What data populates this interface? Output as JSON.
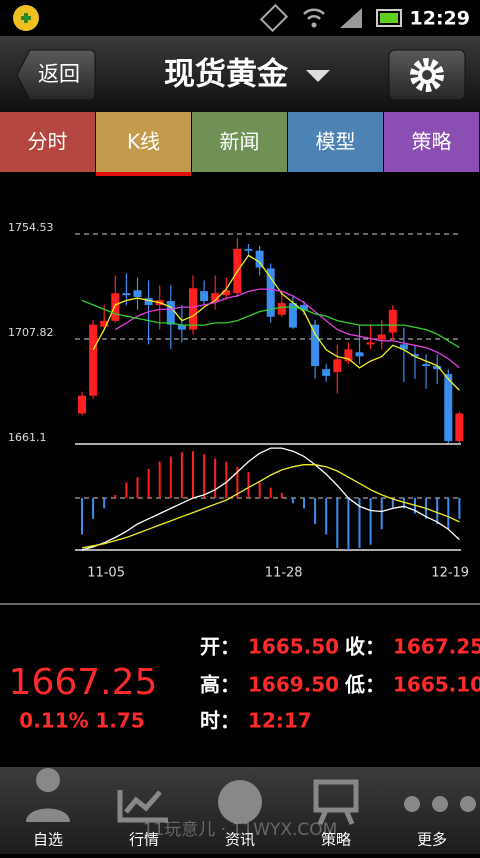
{
  "status_bar": {
    "time": "12:29"
  },
  "header": {
    "back": "返回",
    "title": "现货黄金"
  },
  "tabs": [
    "分时",
    "K线",
    "新闻",
    "模型",
    "策略"
  ],
  "active_tab": 1,
  "chart_data": [
    {
      "type": "candlestick",
      "categories": [
        null,
        "11-05",
        null,
        null,
        null,
        null,
        null,
        null,
        null,
        null,
        null,
        null,
        null,
        null,
        null,
        null,
        null,
        "11-28",
        null,
        null,
        null,
        null,
        null,
        null,
        null,
        null,
        null,
        null,
        null,
        null,
        null,
        null,
        "12-19",
        null,
        null
      ],
      "open": [
        1674.7,
        1682.6,
        1713.3,
        1715.9,
        1728.2,
        1729.5,
        1726.0,
        1722.9,
        1724.7,
        1714.2,
        1712.0,
        1729.1,
        1724.7,
        1727.3,
        1728.2,
        1747.9,
        1747.1,
        1739.2,
        1718.6,
        1723.8,
        1722.9,
        1714.2,
        1694.4,
        1693.1,
        1697.9,
        1701.9,
        1705.4,
        1707.6,
        1710.7,
        1705.4,
        1701.0,
        1696.6,
        1695.8,
        1692.2,
        1662.4
      ],
      "high": [
        1684.4,
        1716.4,
        1722.9,
        1736.1,
        1737.0,
        1735.2,
        1733.9,
        1731.7,
        1731.7,
        1722.9,
        1736.1,
        1733.9,
        1736.1,
        1735.2,
        1752.8,
        1750.1,
        1749.3,
        1741.4,
        1729.5,
        1727.3,
        1724.7,
        1716.4,
        1696.6,
        1705.4,
        1706.3,
        1714.2,
        1714.2,
        1716.4,
        1722.9,
        1712.9,
        1705.4,
        1701.0,
        1701.0,
        1694.4,
        1675.6
      ],
      "low": [
        1673.8,
        1681.3,
        1712.4,
        1715.1,
        1722.9,
        1720.8,
        1705.4,
        1712.0,
        1703.2,
        1706.3,
        1709.8,
        1722.9,
        1720.8,
        1725.1,
        1726.5,
        1744.9,
        1736.1,
        1715.1,
        1717.7,
        1712.4,
        1718.6,
        1690.1,
        1688.7,
        1683.5,
        1696.6,
        1696.6,
        1703.2,
        1703.2,
        1707.6,
        1688.7,
        1690.1,
        1685.7,
        1687.9,
        1661.5,
        1661.5
      ],
      "close": [
        1682.6,
        1714.2,
        1715.9,
        1728.2,
        1727.3,
        1726.5,
        1722.9,
        1725.1,
        1714.2,
        1712.0,
        1730.4,
        1724.7,
        1728.2,
        1729.5,
        1747.9,
        1747.1,
        1739.6,
        1717.7,
        1723.8,
        1712.9,
        1720.8,
        1695.8,
        1691.4,
        1698.8,
        1703.2,
        1700.1,
        1706.3,
        1709.8,
        1720.8,
        1703.2,
        1700.1,
        1695.8,
        1694.4,
        1662.4,
        1674.7
      ],
      "up_color": "#ff2020",
      "down_color": "#3a8ef0",
      "lines": [
        {
          "color": "#f0f020",
          "values": [
            null,
            1703,
            1712,
            1723,
            1725,
            1726,
            1725,
            1724,
            1722,
            1716,
            1718,
            1722,
            1725,
            1730,
            1738,
            1745,
            1742,
            1735,
            1728,
            1724,
            1720,
            1710,
            1703,
            1700,
            1699,
            1695,
            1698,
            1700,
            1705,
            1703,
            1700,
            1698,
            1696,
            1690,
            1685
          ]
        },
        {
          "color": "#e040e0",
          "values": [
            null,
            null,
            null,
            1712,
            1715,
            1718,
            1720,
            1721,
            1721,
            1722,
            1722,
            1723,
            1724,
            1726,
            1727,
            1729,
            1730,
            1730,
            1729,
            1727,
            1724,
            1720,
            1716,
            1712,
            1710,
            1709,
            1708,
            1707,
            1707,
            1706,
            1705,
            1704,
            1702,
            1699,
            1695
          ]
        },
        {
          "color": "#30d030",
          "values": [
            1725,
            1723,
            1721,
            1719,
            1718,
            1717,
            1716,
            1715,
            1715,
            1714,
            1714,
            1714,
            1715,
            1715,
            1716,
            1718,
            1720,
            1721,
            1722,
            1722,
            1721,
            1719,
            1718,
            1716,
            1715,
            1714,
            1714,
            1714,
            1714,
            1714,
            1713,
            1712,
            1710,
            1707,
            1704
          ]
        }
      ],
      "ylim": [
        1661.1,
        1754.53
      ],
      "yticks": [
        1661.1,
        1707.82,
        1754.53
      ]
    },
    {
      "type": "bar",
      "values": [
        -3.5,
        -2,
        -1,
        0.3,
        1.5,
        2,
        2.8,
        3.5,
        4,
        4.4,
        4.5,
        4.2,
        3.8,
        3.5,
        3,
        2.5,
        1.5,
        1,
        0.5,
        -0.5,
        -1,
        -2.5,
        -3.5,
        -4.8,
        -5,
        -4.8,
        -4.5,
        -3,
        -1,
        -1,
        -1.5,
        -2,
        -2.5,
        -3,
        -2
      ],
      "up_color": "#ff2020",
      "down_color": "#3a8ef0",
      "lines": [
        {
          "color": "#ffffff",
          "values": [
            -5,
            -4.7,
            -4.3,
            -3.8,
            -3.2,
            -2.5,
            -2,
            -1.5,
            -1,
            -0.5,
            0,
            0.3,
            0.8,
            1.5,
            2.5,
            3.5,
            4.3,
            4.8,
            4.8,
            4.5,
            4,
            3.2,
            2.3,
            1.2,
            0,
            -0.8,
            -1.2,
            -1.3,
            -1,
            -0.8,
            -1.2,
            -1.8,
            -2.3,
            -3,
            -4
          ]
        },
        {
          "color": "#f0f020",
          "values": [
            -4.8,
            -4.6,
            -4.4,
            -4.1,
            -3.8,
            -3.4,
            -3,
            -2.6,
            -2.2,
            -1.8,
            -1.4,
            -1,
            -0.6,
            -0.2,
            0.4,
            1,
            1.6,
            2.2,
            2.7,
            3,
            3.2,
            3.2,
            3,
            2.6,
            2,
            1.4,
            0.8,
            0.3,
            -0.1,
            -0.4,
            -0.7,
            -1,
            -1.4,
            -1.8,
            -2.3
          ]
        }
      ],
      "ylim": [
        -5,
        5
      ]
    }
  ],
  "quote": {
    "price": "1667.25",
    "change_pct": "0.11%",
    "change": "1.75",
    "fields": [
      {
        "label": "开：",
        "value": "1665.50"
      },
      {
        "label": "收：",
        "value": "1667.25"
      },
      {
        "label": "高：",
        "value": "1669.50"
      },
      {
        "label": "低：",
        "value": "1665.10"
      },
      {
        "label": "时：",
        "value": "12:17"
      }
    ]
  },
  "nav": [
    "自选",
    "行情",
    "资讯",
    "策略",
    "更多"
  ],
  "watermark": "11玩意儿 · 11WYX.COM"
}
